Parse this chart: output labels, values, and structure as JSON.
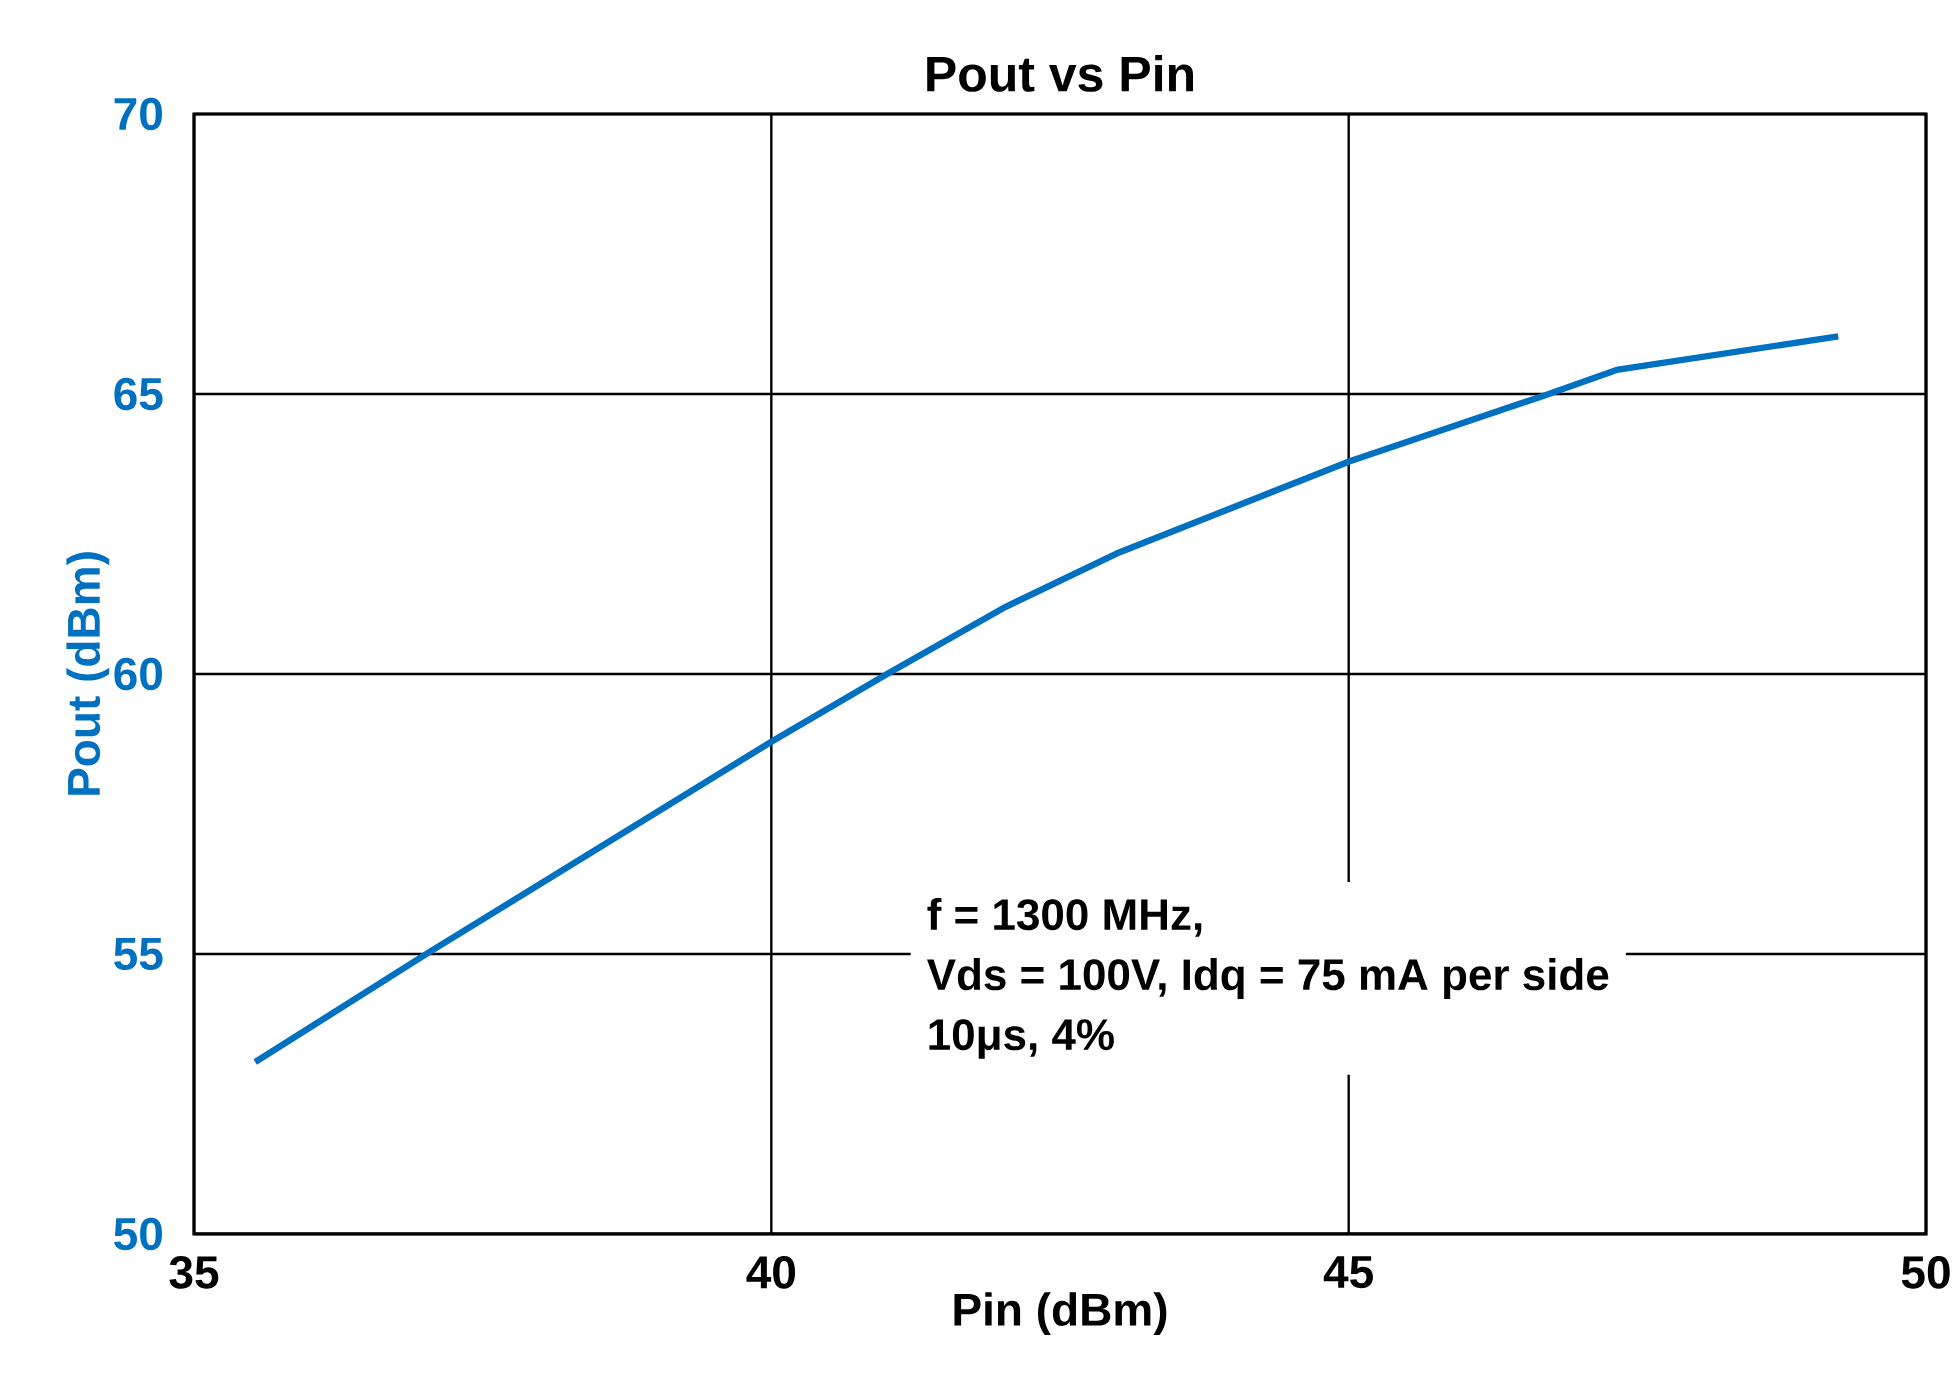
{
  "chart_data": {
    "type": "line",
    "title": "Pout vs Pin",
    "xlabel": "Pin (dBm)",
    "ylabel": "Pout (dBm)",
    "x": [
      35.53,
      37.02,
      40.0,
      41.01,
      42.03,
      42.99,
      45.01,
      46.69,
      47.32,
      49.24
    ],
    "series": [
      {
        "color": "#0070c0",
        "values": [
          53.07,
          55.01,
          58.79,
          60.01,
          61.2,
          62.15,
          63.8,
          64.97,
          65.43,
          66.03
        ]
      }
    ],
    "xlim": [
      35,
      50
    ],
    "ylim": [
      50,
      70
    ],
    "xticks": [
      35,
      40,
      45,
      50
    ],
    "yticks": [
      50,
      55,
      60,
      65,
      70
    ],
    "grid": true,
    "marker": "none",
    "line_style": "solid",
    "annotations": [
      "f = 1300 MHz,",
      "Vds = 100V, Idq = 75 mA per side",
      "10μs, 4%"
    ]
  }
}
